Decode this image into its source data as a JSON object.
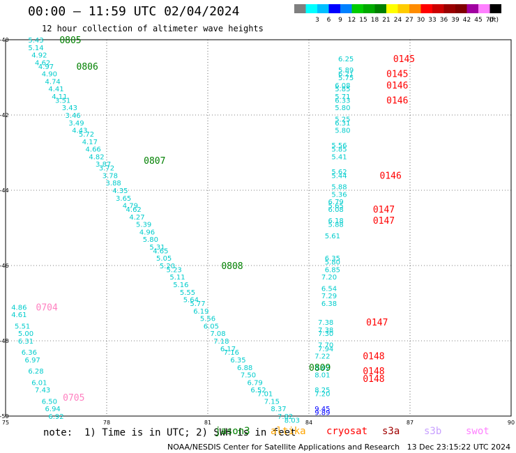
{
  "header": {
    "title": "00:00 — 11:59 UTC 02/04/2024",
    "subtitle": "12 hour collection of altimeter wave heights"
  },
  "colorbar": {
    "unit": "(ft)",
    "bins": [
      {
        "color": "#7f7f7f",
        "label": ""
      },
      {
        "color": "#00ffff",
        "label": "3"
      },
      {
        "color": "#00bfff",
        "label": "6"
      },
      {
        "color": "#0000ff",
        "label": "9"
      },
      {
        "color": "#0080ff",
        "label": "12"
      },
      {
        "color": "#00cc00",
        "label": "15"
      },
      {
        "color": "#00aa00",
        "label": "18"
      },
      {
        "color": "#008000",
        "label": "21"
      },
      {
        "color": "#ffff00",
        "label": "24"
      },
      {
        "color": "#ffcc00",
        "label": "27"
      },
      {
        "color": "#ff8c00",
        "label": "30"
      },
      {
        "color": "#ff0000",
        "label": "33"
      },
      {
        "color": "#cc0000",
        "label": "36"
      },
      {
        "color": "#990000",
        "label": "39"
      },
      {
        "color": "#800000",
        "label": "42"
      },
      {
        "color": "#a000a0",
        "label": "45"
      },
      {
        "color": "#ff80ff",
        "label": "70"
      },
      {
        "color": "#000000",
        "label": ""
      }
    ]
  },
  "footer": {
    "note": "note:  1) Time is in UTC; 2) SWH is in feet",
    "credit": "NOAA/NESDIS Center for Satellite Applications and Research   13 Dec 23:15:22 UTC 2024",
    "missions": [
      {
        "name": "jason3",
        "color": "#008000"
      },
      {
        "name": "altika",
        "color": "#ffa500"
      },
      {
        "name": "cryosat",
        "color": "#ff0000"
      },
      {
        "name": "s3a",
        "color": "#a00000"
      },
      {
        "name": "s3b",
        "color": "#c8a0ff"
      },
      {
        "name": "swot",
        "color": "#ff80ff"
      }
    ]
  },
  "chart_data": {
    "type": "scatter",
    "xlim": [
      75,
      90
    ],
    "ylim": [
      -50,
      -40
    ],
    "x_ticks": [
      75,
      78,
      81,
      84,
      87,
      90
    ],
    "y_ticks": [
      -40,
      -42,
      -44,
      -46,
      -48,
      -50
    ],
    "x_tick_labels": [
      "75",
      "78",
      "81",
      "84",
      "87",
      "90"
    ],
    "y_tick_labels": [
      "-40",
      "-42",
      "-44",
      "-46",
      "-48",
      "-50"
    ],
    "grid": true,
    "tracks": [
      {
        "color": "#00cccc",
        "points": [
          {
            "x": 75.9,
            "y": -40.0,
            "v": "5.43"
          },
          {
            "x": 75.9,
            "y": -40.2,
            "v": "5.14"
          },
          {
            "x": 76.0,
            "y": -40.4,
            "v": "4.92"
          },
          {
            "x": 76.1,
            "y": -40.6,
            "v": "4.62"
          },
          {
            "x": 76.2,
            "y": -40.7,
            "v": "4.97"
          },
          {
            "x": 76.3,
            "y": -40.9,
            "v": "4.90"
          },
          {
            "x": 76.4,
            "y": -41.1,
            "v": "4.74"
          },
          {
            "x": 76.5,
            "y": -41.3,
            "v": "4.41"
          },
          {
            "x": 76.6,
            "y": -41.5,
            "v": "4.11"
          },
          {
            "x": 76.7,
            "y": -41.6,
            "v": "3.51"
          },
          {
            "x": 76.9,
            "y": -41.8,
            "v": "3.43"
          },
          {
            "x": 77.0,
            "y": -42.0,
            "v": "3.46"
          },
          {
            "x": 77.1,
            "y": -42.2,
            "v": "3.49"
          },
          {
            "x": 77.2,
            "y": -42.4,
            "v": "4.43"
          },
          {
            "x": 77.4,
            "y": -42.5,
            "v": "5.72"
          },
          {
            "x": 77.5,
            "y": -42.7,
            "v": "4.17"
          },
          {
            "x": 77.6,
            "y": -42.9,
            "v": "4.66"
          },
          {
            "x": 77.7,
            "y": -43.1,
            "v": "4.82"
          },
          {
            "x": 77.9,
            "y": -43.3,
            "v": "3.87"
          },
          {
            "x": 78.0,
            "y": -43.4,
            "v": "3.72"
          },
          {
            "x": 78.1,
            "y": -43.6,
            "v": "3.78"
          },
          {
            "x": 78.2,
            "y": -43.8,
            "v": "3.88"
          },
          {
            "x": 78.4,
            "y": -44.0,
            "v": "4.35"
          },
          {
            "x": 78.5,
            "y": -44.2,
            "v": "3.65"
          },
          {
            "x": 78.7,
            "y": -44.4,
            "v": "4.79"
          },
          {
            "x": 78.8,
            "y": -44.5,
            "v": "4.62"
          },
          {
            "x": 78.9,
            "y": -44.7,
            "v": "4.27"
          },
          {
            "x": 79.1,
            "y": -44.9,
            "v": "5.39"
          },
          {
            "x": 79.2,
            "y": -45.1,
            "v": "4.96"
          },
          {
            "x": 79.3,
            "y": -45.3,
            "v": "5.80"
          },
          {
            "x": 79.5,
            "y": -45.5,
            "v": "5.31"
          },
          {
            "x": 79.6,
            "y": -45.6,
            "v": "4.65"
          },
          {
            "x": 79.7,
            "y": -45.8,
            "v": "5.05"
          },
          {
            "x": 79.8,
            "y": -46.0,
            "v": "5.20"
          },
          {
            "x": 80.0,
            "y": -46.1,
            "v": "5.23"
          },
          {
            "x": 80.1,
            "y": -46.3,
            "v": "5.11"
          },
          {
            "x": 80.2,
            "y": -46.5,
            "v": "5.16"
          },
          {
            "x": 80.4,
            "y": -46.7,
            "v": "5.55"
          },
          {
            "x": 80.5,
            "y": -46.9,
            "v": "5.64"
          },
          {
            "x": 80.7,
            "y": -47.0,
            "v": "5.77"
          },
          {
            "x": 80.8,
            "y": -47.2,
            "v": "6.19"
          },
          {
            "x": 81.0,
            "y": -47.4,
            "v": "5.56"
          },
          {
            "x": 81.1,
            "y": -47.6,
            "v": "6.05"
          },
          {
            "x": 81.3,
            "y": -47.8,
            "v": "7.08"
          },
          {
            "x": 81.4,
            "y": -48.0,
            "v": "7.18"
          },
          {
            "x": 81.6,
            "y": -48.2,
            "v": "6.17"
          },
          {
            "x": 81.7,
            "y": -48.3,
            "v": "7.16"
          },
          {
            "x": 81.9,
            "y": -48.5,
            "v": "6.35"
          },
          {
            "x": 82.1,
            "y": -48.7,
            "v": "6.88"
          },
          {
            "x": 82.2,
            "y": -48.9,
            "v": "7.50"
          },
          {
            "x": 82.4,
            "y": -49.1,
            "v": "6.79"
          },
          {
            "x": 82.5,
            "y": -49.3,
            "v": "6.52"
          },
          {
            "x": 82.7,
            "y": -49.4,
            "v": "7.01"
          },
          {
            "x": 82.9,
            "y": -49.6,
            "v": "7.15"
          },
          {
            "x": 83.1,
            "y": -49.8,
            "v": "8.37"
          },
          {
            "x": 83.3,
            "y": -50.0,
            "v": "7.82"
          },
          {
            "x": 83.5,
            "y": -50.1,
            "v": "8.03"
          }
        ]
      },
      {
        "color": "#00cccc",
        "points": [
          {
            "x": 85.1,
            "y": -40.5,
            "v": "6.25"
          },
          {
            "x": 85.1,
            "y": -40.8,
            "v": "5.89"
          },
          {
            "x": 85.1,
            "y": -40.9,
            "v": "6.21"
          },
          {
            "x": 85.1,
            "y": -41.0,
            "v": "5.75"
          },
          {
            "x": 85.0,
            "y": -41.2,
            "v": "6.08"
          },
          {
            "x": 85.0,
            "y": -41.3,
            "v": "5.85"
          },
          {
            "x": 85.0,
            "y": -41.5,
            "v": "5.71"
          },
          {
            "x": 85.0,
            "y": -41.6,
            "v": "6.33"
          },
          {
            "x": 85.0,
            "y": -41.8,
            "v": "5.80"
          },
          {
            "x": 85.0,
            "y": -42.1,
            "v": "5.25"
          },
          {
            "x": 85.0,
            "y": -42.2,
            "v": "6.31"
          },
          {
            "x": 85.0,
            "y": -42.4,
            "v": "5.80"
          },
          {
            "x": 84.9,
            "y": -42.8,
            "v": "5.56"
          },
          {
            "x": 84.9,
            "y": -42.9,
            "v": "5.85"
          },
          {
            "x": 84.9,
            "y": -43.1,
            "v": "5.41"
          },
          {
            "x": 84.9,
            "y": -43.5,
            "v": "5.62"
          },
          {
            "x": 84.9,
            "y": -43.6,
            "v": "5.44"
          },
          {
            "x": 84.9,
            "y": -43.9,
            "v": "5.88"
          },
          {
            "x": 84.9,
            "y": -44.1,
            "v": "5.36"
          },
          {
            "x": 84.8,
            "y": -44.3,
            "v": "6.79"
          },
          {
            "x": 84.8,
            "y": -44.4,
            "v": "5.65"
          },
          {
            "x": 84.8,
            "y": -44.5,
            "v": "6.08"
          },
          {
            "x": 84.8,
            "y": -44.8,
            "v": "6.18"
          },
          {
            "x": 84.8,
            "y": -44.9,
            "v": "5.88"
          },
          {
            "x": 84.7,
            "y": -45.2,
            "v": "5.61"
          },
          {
            "x": 84.7,
            "y": -45.8,
            "v": "6.35"
          },
          {
            "x": 84.7,
            "y": -45.9,
            "v": "5.80"
          },
          {
            "x": 84.7,
            "y": -46.1,
            "v": "6.85"
          },
          {
            "x": 84.6,
            "y": -46.3,
            "v": "7.20"
          },
          {
            "x": 84.6,
            "y": -46.6,
            "v": "6.54"
          },
          {
            "x": 84.6,
            "y": -46.8,
            "v": "7.29"
          },
          {
            "x": 84.6,
            "y": -47.0,
            "v": "6.38"
          },
          {
            "x": 84.5,
            "y": -47.5,
            "v": "7.38"
          },
          {
            "x": 84.5,
            "y": -47.7,
            "v": "7.38"
          },
          {
            "x": 84.5,
            "y": -47.8,
            "v": "7.30"
          },
          {
            "x": 84.5,
            "y": -48.1,
            "v": "7.70"
          },
          {
            "x": 84.5,
            "y": -48.2,
            "v": "7.94"
          },
          {
            "x": 84.4,
            "y": -48.4,
            "v": "7.22"
          },
          {
            "x": 84.4,
            "y": -48.7,
            "v": "8.02"
          },
          {
            "x": 84.4,
            "y": -48.9,
            "v": "8.01"
          },
          {
            "x": 84.4,
            "y": -49.3,
            "v": "8.25"
          },
          {
            "x": 84.4,
            "y": -49.4,
            "v": "7.20"
          }
        ]
      },
      {
        "color": "#0000ff",
        "points": [
          {
            "x": 84.4,
            "y": -49.8,
            "v": "9.45"
          },
          {
            "x": 84.4,
            "y": -49.9,
            "v": "9.89"
          }
        ]
      },
      {
        "color": "#00cccc",
        "points": [
          {
            "x": 75.4,
            "y": -47.1,
            "v": "4.86"
          },
          {
            "x": 75.4,
            "y": -47.3,
            "v": "4.61"
          },
          {
            "x": 75.5,
            "y": -47.6,
            "v": "5.51"
          },
          {
            "x": 75.6,
            "y": -47.8,
            "v": "5.00"
          },
          {
            "x": 75.6,
            "y": -48.0,
            "v": "6.31"
          },
          {
            "x": 75.7,
            "y": -48.3,
            "v": "6.36"
          },
          {
            "x": 75.8,
            "y": -48.5,
            "v": "6.97"
          },
          {
            "x": 75.9,
            "y": -48.8,
            "v": "6.28"
          },
          {
            "x": 76.0,
            "y": -49.1,
            "v": "6.01"
          },
          {
            "x": 76.1,
            "y": -49.3,
            "v": "7.43"
          },
          {
            "x": 76.3,
            "y": -49.6,
            "v": "6.50"
          },
          {
            "x": 76.4,
            "y": -49.8,
            "v": "6.94"
          },
          {
            "x": 76.5,
            "y": -50.0,
            "v": "6.92"
          }
        ]
      }
    ],
    "annotations": [
      {
        "text": "0805",
        "x": 76.6,
        "y": -40.0,
        "color": "#008000"
      },
      {
        "text": "0806",
        "x": 77.1,
        "y": -40.7,
        "color": "#008000"
      },
      {
        "text": "0807",
        "x": 79.1,
        "y": -43.2,
        "color": "#008000"
      },
      {
        "text": "0808",
        "x": 81.4,
        "y": -46.0,
        "color": "#008000"
      },
      {
        "text": "0809",
        "x": 84.0,
        "y": -48.7,
        "color": "#008000"
      },
      {
        "text": "0145",
        "x": 86.5,
        "y": -40.5,
        "color": "#ff0000"
      },
      {
        "text": "0145",
        "x": 86.3,
        "y": -40.9,
        "color": "#ff0000"
      },
      {
        "text": "0146",
        "x": 86.3,
        "y": -41.2,
        "color": "#ff0000"
      },
      {
        "text": "0146",
        "x": 86.3,
        "y": -41.6,
        "color": "#ff0000"
      },
      {
        "text": "0146",
        "x": 86.1,
        "y": -43.6,
        "color": "#ff0000"
      },
      {
        "text": "0147",
        "x": 85.9,
        "y": -44.5,
        "color": "#ff0000"
      },
      {
        "text": "0147",
        "x": 85.9,
        "y": -44.8,
        "color": "#ff0000"
      },
      {
        "text": "0147",
        "x": 85.7,
        "y": -47.5,
        "color": "#ff0000"
      },
      {
        "text": "0148",
        "x": 85.6,
        "y": -48.4,
        "color": "#ff0000"
      },
      {
        "text": "0148",
        "x": 85.6,
        "y": -48.8,
        "color": "#ff0000"
      },
      {
        "text": "0148",
        "x": 85.6,
        "y": -49.0,
        "color": "#ff0000"
      },
      {
        "text": "0704",
        "x": 75.9,
        "y": -47.1,
        "color": "#ff80c0"
      },
      {
        "text": "0705",
        "x": 76.7,
        "y": -49.5,
        "color": "#ff80c0"
      }
    ]
  }
}
